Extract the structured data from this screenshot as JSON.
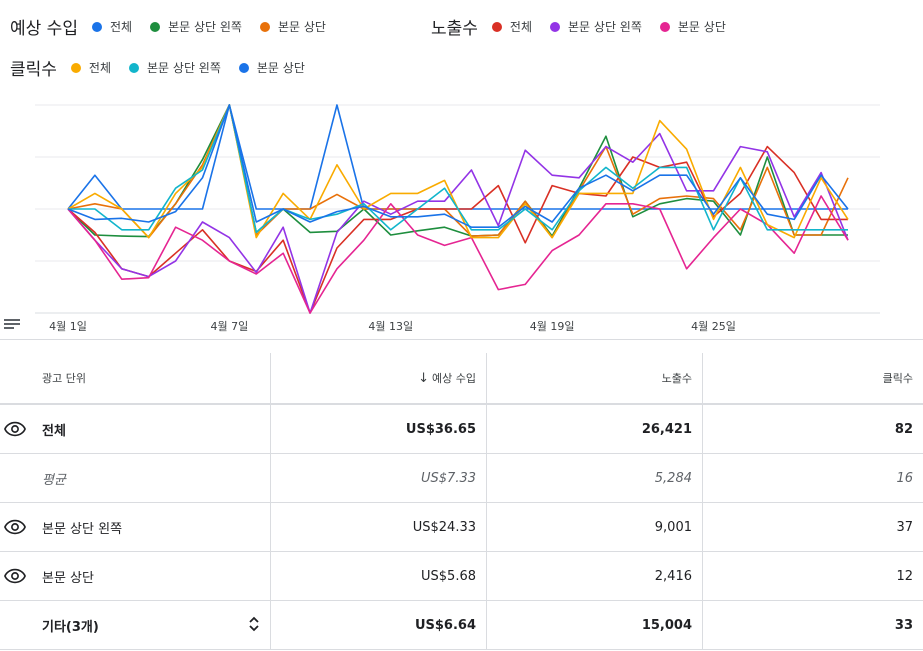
{
  "legend": {
    "revenue": {
      "title": "예상 수입",
      "items": [
        {
          "label": "전체",
          "color": "#1a73e8"
        },
        {
          "label": "본문 상단 왼쪽",
          "color": "#1e8e3e"
        },
        {
          "label": "본문 상단",
          "color": "#e8710a"
        }
      ]
    },
    "impressions": {
      "title": "노출수",
      "items": [
        {
          "label": "전체",
          "color": "#d93025"
        },
        {
          "label": "본문 상단 왼쪽",
          "color": "#9334e6"
        },
        {
          "label": "본문 상단",
          "color": "#e52592"
        }
      ]
    },
    "clicks": {
      "title": "클릭수",
      "items": [
        {
          "label": "전체",
          "color": "#f9ab00"
        },
        {
          "label": "본문 상단 왼쪽",
          "color": "#12b5cb"
        },
        {
          "label": "본문 상단",
          "color": "#1a73e8"
        }
      ]
    }
  },
  "chart_data": {
    "type": "line",
    "x": [
      1,
      2,
      3,
      4,
      5,
      6,
      7,
      8,
      9,
      10,
      11,
      12,
      13,
      14,
      15,
      16,
      17,
      18,
      19,
      20,
      21,
      22,
      23,
      24,
      25,
      26,
      27,
      28,
      29,
      30
    ],
    "x_tick_labels": [
      "4월 1일",
      "4월 7일",
      "4월 13일",
      "4월 19일",
      "4월 25일"
    ],
    "x_tick_positions": [
      1,
      7,
      13,
      19,
      25
    ],
    "ylim": [
      -2,
      2
    ],
    "y_axis_labels_visible": false,
    "series": [
      {
        "name": "예상 수입 · 전체",
        "color": "#1a73e8",
        "values": [
          0,
          0.65,
          0,
          0,
          0,
          0,
          2,
          0,
          0,
          0,
          2,
          0,
          0,
          0,
          0,
          0,
          0,
          0,
          0,
          0,
          0,
          0,
          0,
          0,
          0,
          0,
          0,
          0,
          0,
          0
        ]
      },
      {
        "name": "예상 수입 · 본문 상단 왼쪽",
        "color": "#1e8e3e",
        "values": [
          0,
          -0.5,
          -0.52,
          -0.53,
          0.1,
          0.95,
          2,
          -0.45,
          0,
          -0.45,
          -0.43,
          0,
          -0.5,
          -0.42,
          -0.35,
          -0.52,
          -0.5,
          0.15,
          -0.52,
          0.4,
          1.4,
          -0.15,
          0.1,
          0.2,
          0.15,
          -0.5,
          1,
          -0.5,
          -0.5,
          -0.5
        ]
      },
      {
        "name": "예상 수입 · 본문 상단",
        "color": "#e8710a",
        "values": [
          0,
          0.1,
          0,
          -0.55,
          0.1,
          0.85,
          2,
          -0.5,
          0,
          0,
          0.28,
          0,
          0,
          0,
          0,
          -0.52,
          -0.5,
          0.15,
          -0.55,
          0.35,
          1.2,
          -0.1,
          0.2,
          0.25,
          0.2,
          -0.4,
          0.8,
          -0.5,
          -0.5,
          0.6
        ]
      },
      {
        "name": "노출수 · 전체",
        "color": "#d93025",
        "values": [
          0,
          -0.45,
          -1.15,
          -1.3,
          -0.85,
          -0.4,
          -1,
          -1.2,
          -0.6,
          -2,
          -0.75,
          -0.2,
          -0.2,
          0,
          0,
          0,
          0.45,
          -0.65,
          0.45,
          0.3,
          0.25,
          1,
          0.8,
          0.9,
          -0.15,
          0.3,
          1.2,
          0.7,
          -0.2,
          -0.2
        ]
      },
      {
        "name": "노출수 · 본문 상단 왼쪽",
        "color": "#9334e6",
        "values": [
          0,
          -0.6,
          -1.15,
          -1.3,
          -1,
          -0.25,
          -0.55,
          -1.22,
          -0.35,
          -2,
          -0.45,
          0.15,
          -0.1,
          0.15,
          0.15,
          0.75,
          -0.32,
          1.13,
          0.65,
          0.6,
          1.2,
          0.9,
          1.45,
          0.35,
          0.35,
          1.2,
          1.1,
          -0.15,
          0.7,
          -0.6
        ]
      },
      {
        "name": "노출수 · 본문 상단",
        "color": "#e52592",
        "values": [
          0,
          -0.6,
          -1.35,
          -1.32,
          -0.35,
          -0.6,
          -1,
          -1.25,
          -0.85,
          -2,
          -1.15,
          -0.6,
          0.1,
          -0.5,
          -0.7,
          -0.55,
          -1.55,
          -1.45,
          -0.8,
          -0.5,
          0.1,
          0.1,
          0,
          -1.15,
          -0.55,
          0,
          -0.3,
          -0.85,
          0.25,
          -0.6
        ]
      },
      {
        "name": "클릭수 · 전체",
        "color": "#f9ab00",
        "values": [
          0,
          0.3,
          0,
          -0.55,
          0.3,
          0.8,
          2,
          -0.55,
          0.3,
          -0.2,
          0.85,
          0,
          0.3,
          0.3,
          0.55,
          -0.55,
          -0.55,
          0.1,
          -0.55,
          0.3,
          0.3,
          0.3,
          1.7,
          1.15,
          -0.2,
          0.8,
          -0.3,
          -0.55,
          0.6,
          -0.2
        ]
      },
      {
        "name": "클릭수 · 본문 상단 왼쪽",
        "color": "#12b5cb",
        "values": [
          0,
          0,
          -0.4,
          -0.4,
          0.4,
          0.75,
          2,
          -0.45,
          0,
          -0.2,
          -0.1,
          0.1,
          -0.4,
          0,
          0.4,
          -0.4,
          -0.4,
          0,
          -0.4,
          0.35,
          0.8,
          0.4,
          0.8,
          0.8,
          -0.4,
          0.6,
          -0.4,
          -0.4,
          -0.4,
          -0.4
        ]
      },
      {
        "name": "클릭수 · 본문 상단",
        "color": "#1a73e8",
        "values": [
          0,
          -0.2,
          -0.18,
          -0.25,
          -0.05,
          0.6,
          2,
          -0.25,
          0,
          -0.25,
          -0.05,
          0.05,
          -0.15,
          -0.15,
          -0.1,
          -0.35,
          -0.35,
          0.05,
          -0.25,
          0.4,
          0.65,
          0.35,
          0.65,
          0.65,
          -0.1,
          0.6,
          -0.1,
          -0.2,
          0.65,
          0
        ]
      }
    ]
  },
  "table": {
    "headers": {
      "name": "광고 단위",
      "revenue": "예상 수입",
      "impressions": "노출수",
      "clicks": "클릭수"
    },
    "sort_icon": "arrow-down-icon",
    "rows": [
      {
        "name": "전체",
        "revenue": "US$36.65",
        "impressions": "26,421",
        "clicks": "82",
        "icon": "eye-icon"
      },
      {
        "name": "평균",
        "revenue": "US$7.33",
        "impressions": "5,284",
        "clicks": "16"
      },
      {
        "name": "본문 상단 왼쪽",
        "revenue": "US$24.33",
        "impressions": "9,001",
        "clicks": "37",
        "icon": "eye-icon"
      },
      {
        "name": "본문 상단",
        "revenue": "US$5.68",
        "impressions": "2,416",
        "clicks": "12",
        "icon": "eye-icon"
      },
      {
        "name": "기타(3개)",
        "revenue": "US$6.64",
        "impressions": "15,004",
        "clicks": "33",
        "icon": "unfold-icon"
      }
    ]
  }
}
